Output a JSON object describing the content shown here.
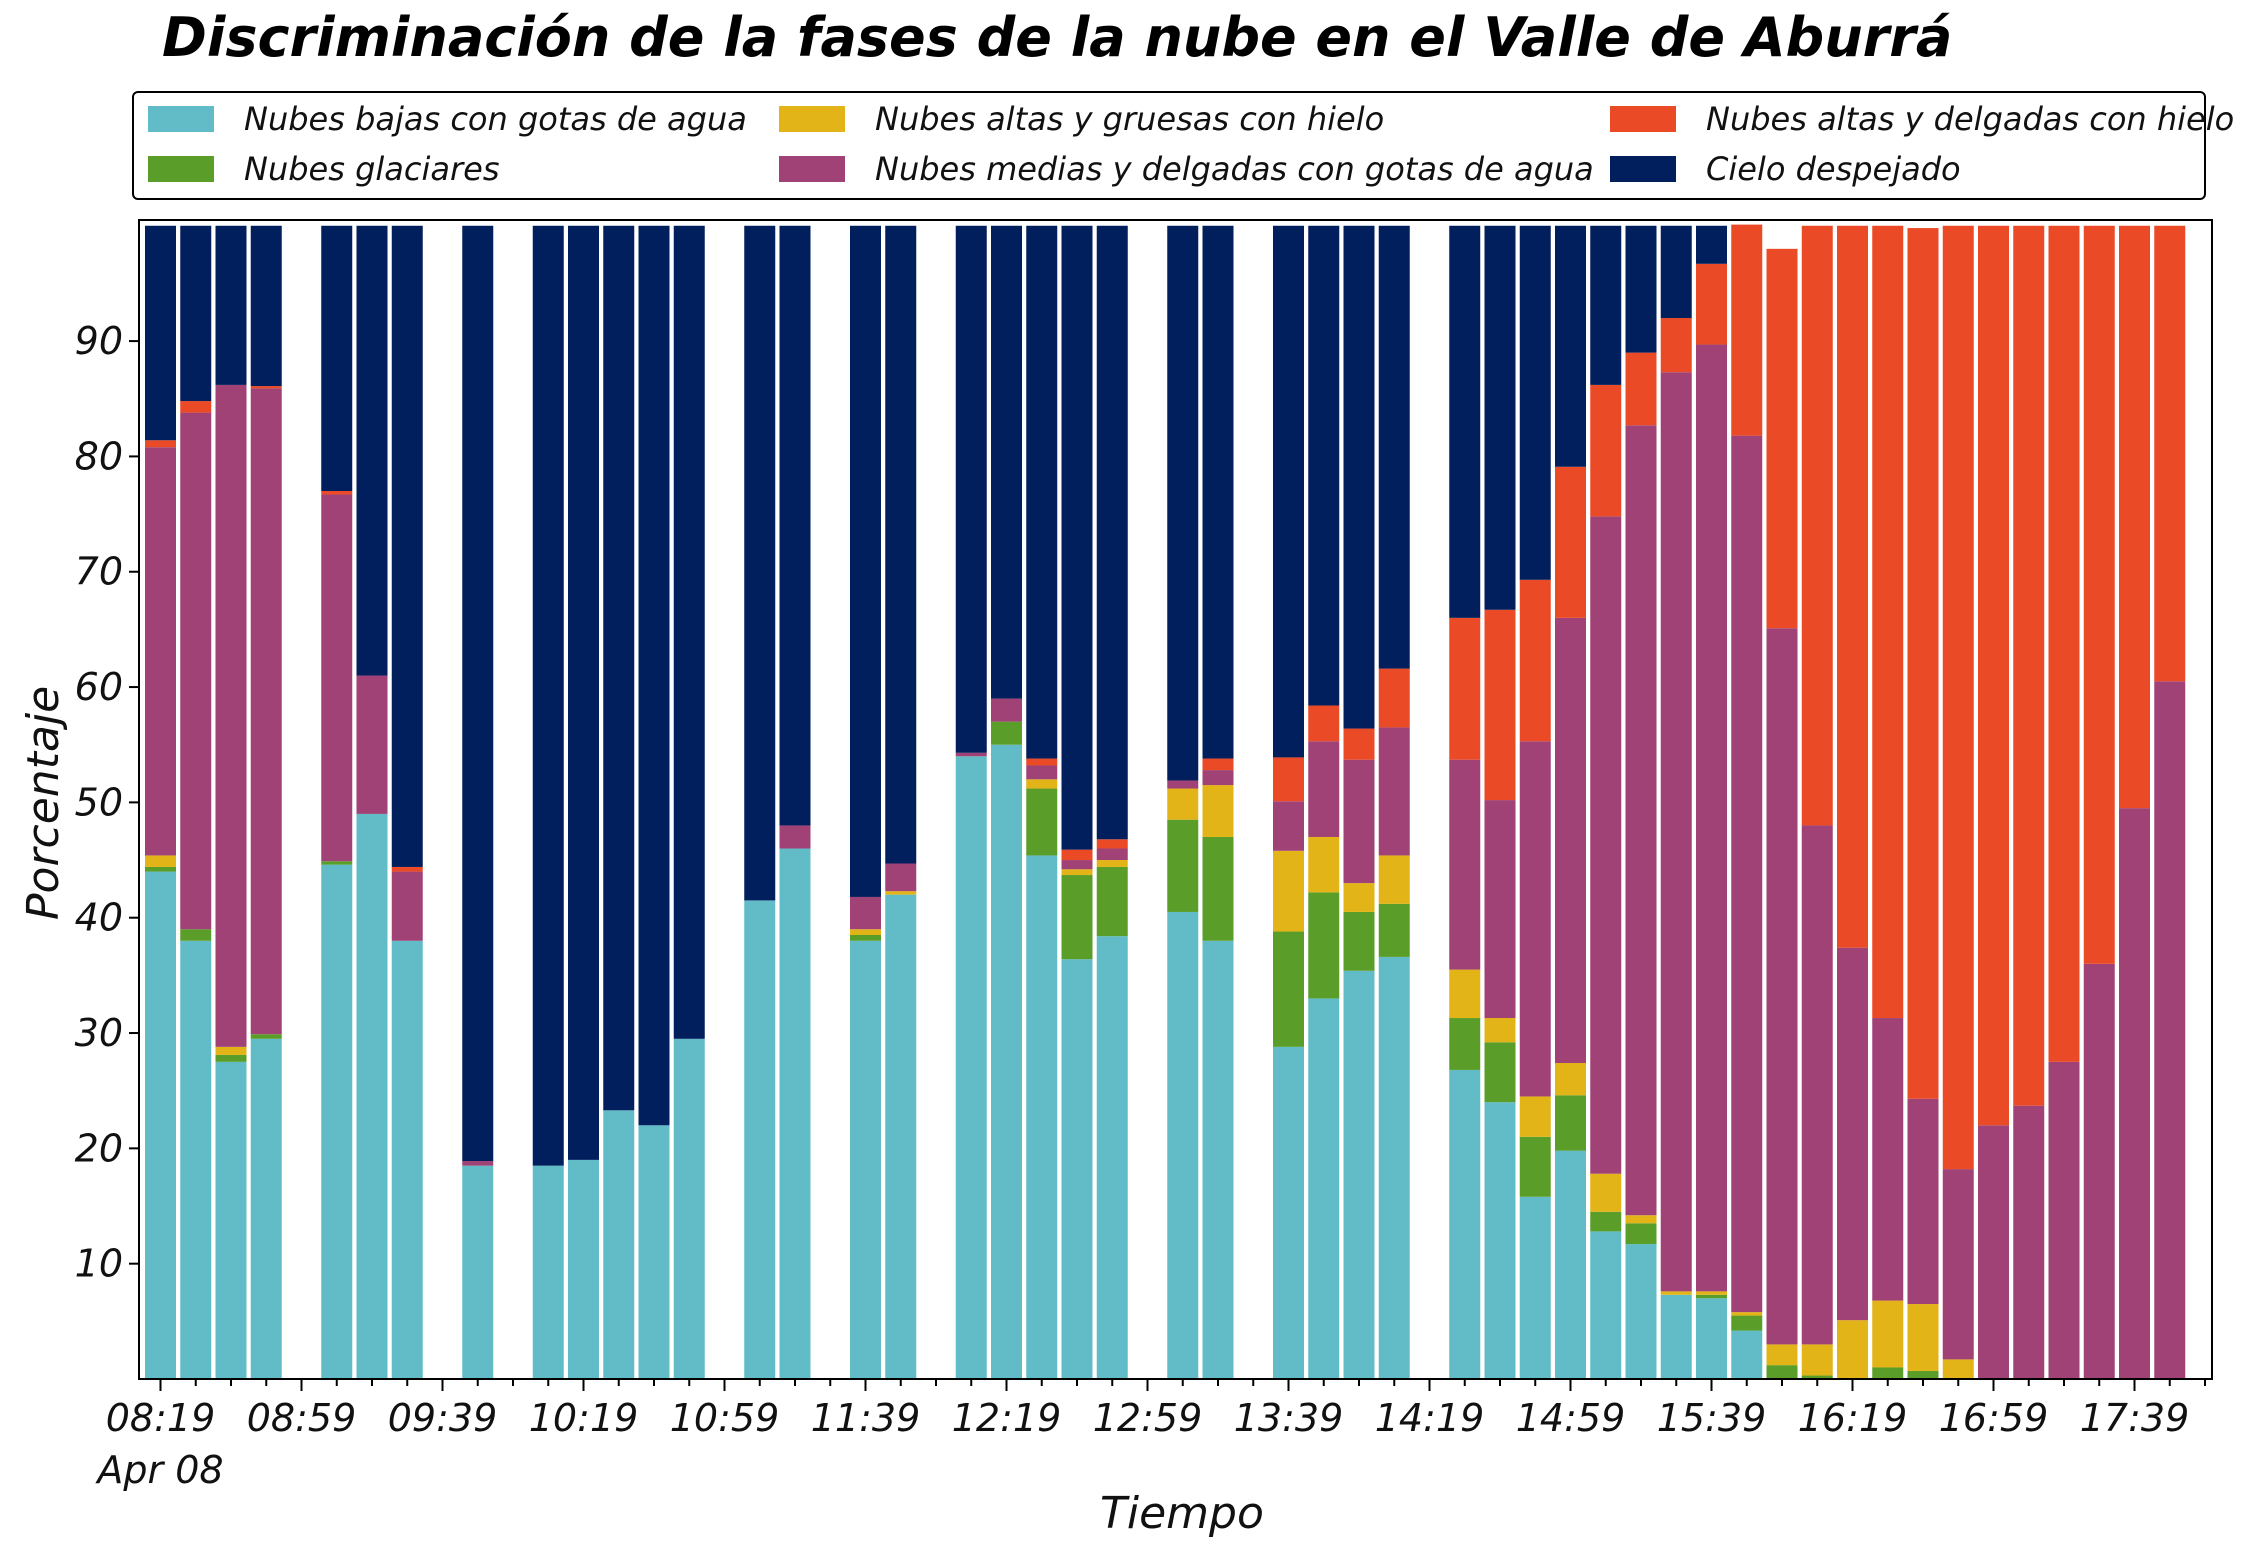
{
  "chart_data": {
    "type": "bar",
    "stacked": true,
    "title": "Discriminación de la fases de la nube en el Valle de Aburrá",
    "xlabel": "Tiempo",
    "ylabel": "Porcentaje",
    "ylim": [
      0,
      100
    ],
    "yticks": [
      10,
      20,
      30,
      40,
      50,
      60,
      70,
      80,
      90
    ],
    "x_tick_labels": [
      "08:19",
      "08:59",
      "09:39",
      "10:19",
      "10:59",
      "11:39",
      "12:19",
      "12:59",
      "13:39",
      "14:19",
      "14:59",
      "15:39",
      "16:19",
      "16:59",
      "17:39"
    ],
    "x_date_label": "Apr 08",
    "legend_position": "top",
    "grid": false,
    "x": [
      "08:19",
      "08:29",
      "08:39",
      "08:49",
      "08:59",
      "09:09",
      "09:19",
      "09:29",
      "09:39",
      "09:49",
      "09:59",
      "10:09",
      "10:19",
      "10:29",
      "10:39",
      "10:49",
      "10:59",
      "11:09",
      "11:19",
      "11:29",
      "11:39",
      "11:49",
      "11:59",
      "12:09",
      "12:19",
      "12:29",
      "12:39",
      "12:49",
      "12:59",
      "13:09",
      "13:19",
      "13:29",
      "13:39",
      "13:49",
      "13:59",
      "14:09",
      "14:19",
      "14:29",
      "14:39",
      "14:49",
      "14:59",
      "15:09",
      "15:19",
      "15:29",
      "15:39",
      "15:49",
      "15:59",
      "16:09",
      "16:19",
      "16:29",
      "16:39",
      "16:49",
      "16:59",
      "17:09",
      "17:19",
      "17:29",
      "17:39",
      "17:49"
    ],
    "series": [
      {
        "name": "Nubes bajas con gotas de agua",
        "color": "#62bcc7",
        "values": [
          44,
          38,
          27.5,
          29.5,
          null,
          44.6,
          49,
          38,
          null,
          18.5,
          null,
          18.5,
          19,
          23.3,
          22,
          29.5,
          null,
          41.5,
          46,
          null,
          38,
          42,
          null,
          54,
          55,
          45.4,
          36.4,
          38.4,
          null,
          40.5,
          38,
          null,
          28.8,
          33,
          35.4,
          36.6,
          null,
          26.8,
          24,
          15.8,
          19.8,
          12.8,
          11.7,
          7.3,
          7,
          4.2,
          0,
          0,
          0,
          0,
          0,
          0,
          0,
          0,
          0,
          0,
          0,
          0
        ]
      },
      {
        "name": "Nubes glaciares",
        "color": "#5a9d28",
        "values": [
          0.4,
          1,
          0.6,
          0.4,
          null,
          0.3,
          0,
          0,
          null,
          0,
          null,
          0,
          0,
          0,
          0,
          0,
          null,
          0,
          0,
          null,
          0.5,
          0,
          null,
          0,
          2,
          5.8,
          7.3,
          6,
          null,
          8,
          9,
          null,
          10,
          9.2,
          5.1,
          4.6,
          null,
          4.5,
          5.2,
          5.2,
          4.8,
          1.7,
          1.8,
          0,
          0.3,
          1.3,
          1.2,
          0.3,
          0,
          1,
          0.7,
          0,
          0,
          0,
          0,
          0,
          0,
          0
        ]
      },
      {
        "name": "Nubes altas y gruesas con hielo",
        "color": "#e2b417",
        "values": [
          1,
          0,
          0.7,
          0,
          null,
          0,
          0,
          0,
          null,
          0,
          null,
          0,
          0,
          0,
          0,
          0,
          null,
          0,
          0,
          null,
          0.5,
          0.3,
          null,
          0,
          0,
          0.8,
          0.5,
          0.6,
          null,
          2.7,
          4.5,
          null,
          7,
          4.8,
          2.5,
          4.2,
          null,
          4.2,
          2.1,
          3.5,
          2.8,
          3.3,
          0.7,
          0.3,
          0.3,
          0.3,
          1.8,
          2.7,
          5.1,
          5.8,
          5.8,
          1.7,
          0,
          0,
          0,
          0,
          0,
          0
        ]
      },
      {
        "name": "Nubes medias y delgadas con gotas de agua",
        "color": "#a04276",
        "values": [
          35.4,
          44.8,
          57.4,
          56,
          null,
          31.8,
          12,
          6,
          null,
          0.4,
          null,
          0,
          0,
          0,
          0,
          0,
          null,
          0,
          2,
          null,
          2.8,
          2.4,
          null,
          0.3,
          2,
          1.2,
          0.8,
          1,
          null,
          0.7,
          1.3,
          null,
          4.3,
          8.3,
          10.7,
          11.1,
          null,
          18.2,
          18.9,
          30.8,
          38.6,
          57,
          68.5,
          79.7,
          82.1,
          76,
          62.1,
          45,
          32.3,
          24.5,
          17.8,
          16.5,
          22,
          23.7,
          27.5,
          36,
          49.5,
          60.5
        ]
      },
      {
        "name": "Nubes altas y delgadas con hielo",
        "color": "#eb4a27",
        "values": [
          0.6,
          1,
          0,
          0.2,
          null,
          0.3,
          0,
          0.4,
          null,
          0,
          null,
          0,
          0,
          0,
          0,
          0,
          null,
          0,
          0,
          null,
          0,
          0,
          null,
          0,
          0,
          0.6,
          0.9,
          0.8,
          null,
          0,
          1,
          null,
          3.8,
          3.1,
          2.7,
          5.1,
          null,
          12.3,
          16.5,
          14,
          13.1,
          11.4,
          6.3,
          4.7,
          7,
          18.3,
          32.9,
          52,
          62.6,
          68.7,
          75.5,
          81.8,
          78,
          76.3,
          72.5,
          64,
          50.5,
          39.5
        ]
      },
      {
        "name": "Cielo despejado",
        "color": "#021f5d",
        "values": [
          18.6,
          15.2,
          13.8,
          13.9,
          null,
          23,
          39,
          55.6,
          null,
          81.1,
          null,
          81.5,
          81,
          76.7,
          78,
          70.5,
          null,
          58.5,
          52,
          null,
          58.2,
          55.3,
          null,
          45.7,
          41,
          46.2,
          54.1,
          53.2,
          null,
          48.1,
          46.2,
          null,
          46.1,
          41.6,
          43.6,
          38.4,
          null,
          34,
          33.3,
          30.7,
          20.9,
          13.8,
          11,
          8,
          3.3,
          0,
          0,
          0,
          0,
          0,
          0,
          0,
          0,
          0,
          0,
          0,
          0,
          0
        ]
      }
    ]
  }
}
